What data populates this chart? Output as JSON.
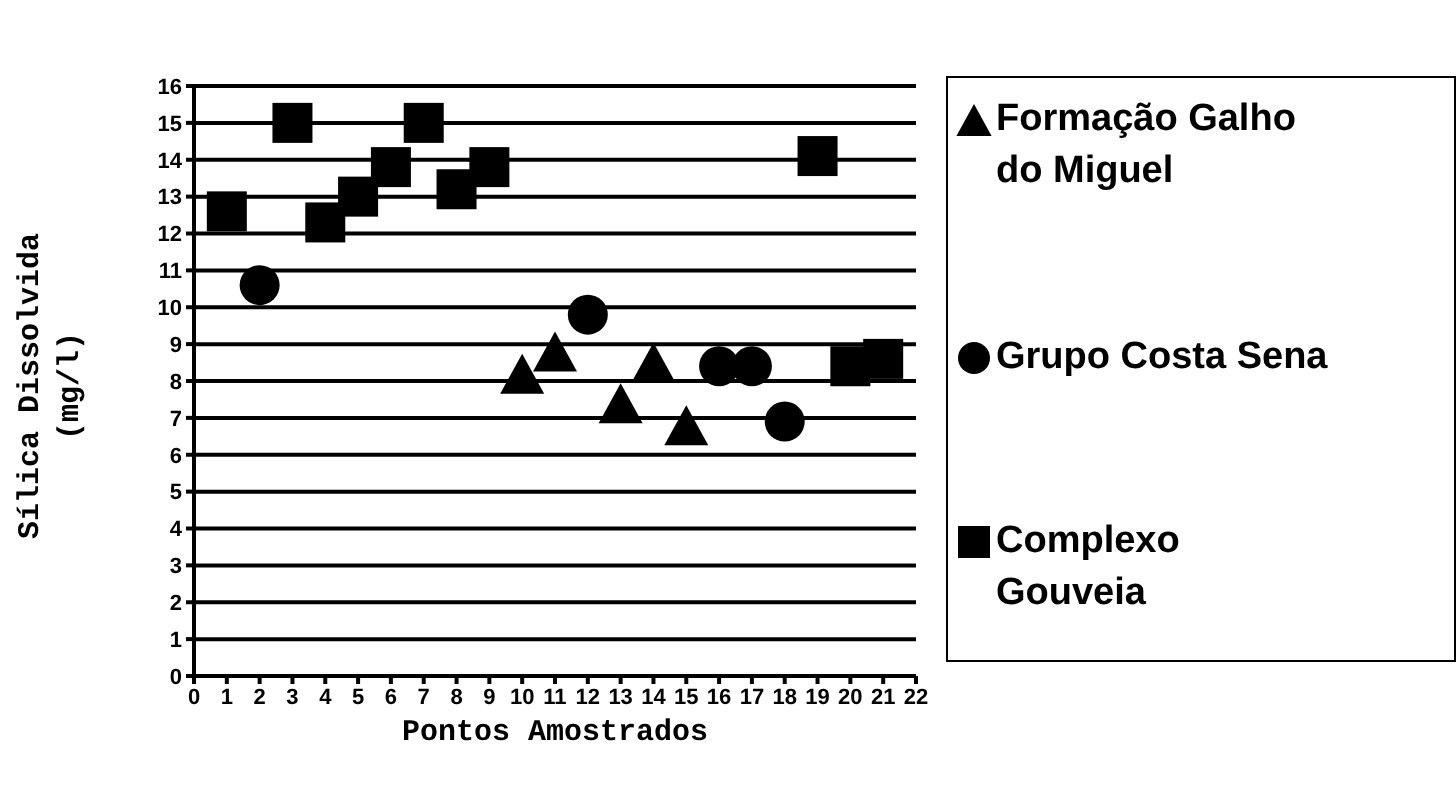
{
  "chart_data": {
    "type": "scatter",
    "xlabel": "Pontos Amostrados",
    "ylabel": "Sílica Dissolvida (mg/l)",
    "xlim": [
      0,
      22
    ],
    "xticks": [
      0,
      1,
      2,
      3,
      4,
      5,
      6,
      7,
      8,
      9,
      10,
      11,
      12,
      13,
      14,
      15,
      16,
      17,
      18,
      19,
      20,
      21,
      22
    ],
    "ylim": [
      0,
      16
    ],
    "yticks": [
      0,
      1,
      2,
      3,
      4,
      5,
      6,
      7,
      8,
      9,
      10,
      11,
      12,
      13,
      14,
      15,
      16
    ],
    "grid": "y",
    "legend": "right",
    "series": [
      {
        "name": "Formação Galho do Miguel",
        "color": "#000000",
        "marker": "triangle",
        "x": [
          10,
          11,
          13,
          14,
          15
        ],
        "values": [
          8.2,
          8.8,
          7.4,
          8.5,
          6.8
        ]
      },
      {
        "name": "Grupo Costa Sena",
        "color": "#000000",
        "marker": "circle",
        "x": [
          2,
          12,
          16,
          17,
          18
        ],
        "values": [
          10.6,
          9.8,
          8.4,
          8.4,
          6.9
        ]
      },
      {
        "name": "Complexo Gouveia",
        "color": "#000000",
        "marker": "square",
        "x": [
          1,
          3,
          4,
          5,
          6,
          7,
          8,
          9,
          19,
          20,
          21
        ],
        "values": [
          12.6,
          15,
          12.3,
          13,
          13.8,
          15,
          13.2,
          13.8,
          14.1,
          8.4,
          8.6
        ]
      }
    ]
  }
}
